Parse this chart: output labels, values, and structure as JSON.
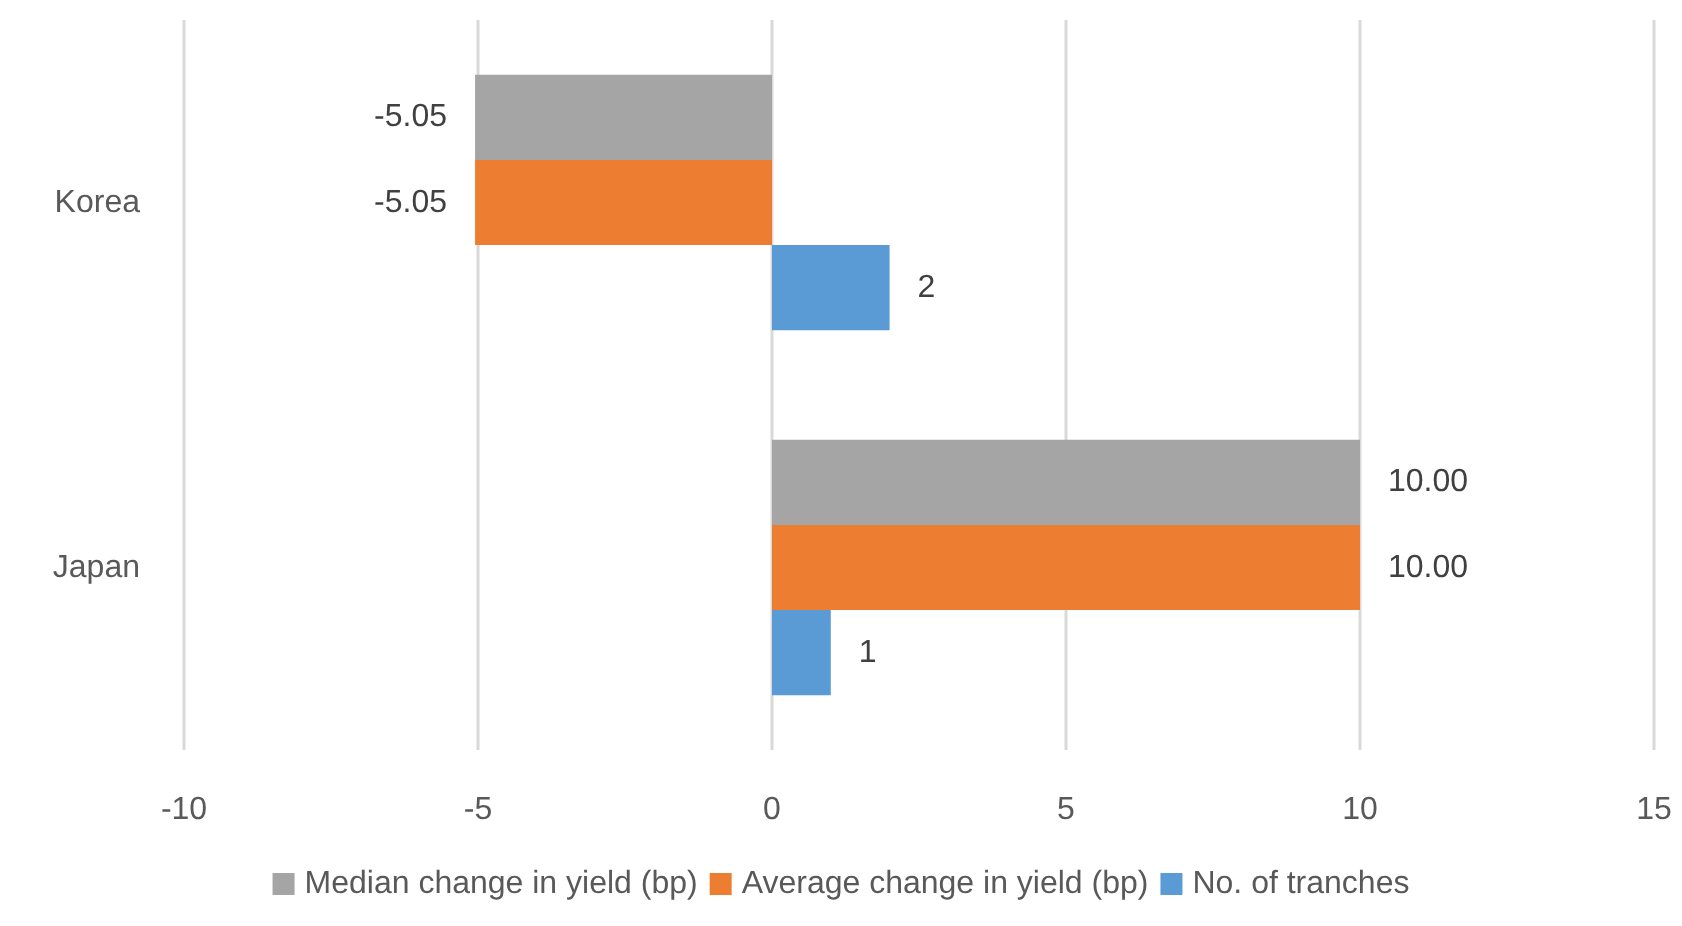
{
  "chart_data": {
    "type": "bar",
    "orientation": "horizontal",
    "categories": [
      "Korea",
      "Japan"
    ],
    "series": [
      {
        "name": "Median change in yield (bp)",
        "color": "#a5a5a5",
        "values": [
          -5.05,
          10.0
        ],
        "value_labels": [
          "-5.05",
          "10.00"
        ]
      },
      {
        "name": "Average change in yield (bp)",
        "color": "#ed7d31",
        "values": [
          -5.05,
          10.0
        ],
        "value_labels": [
          "-5.05",
          "10.00"
        ]
      },
      {
        "name": "No. of tranches",
        "color": "#5b9bd5",
        "values": [
          2,
          1
        ],
        "value_labels": [
          "2",
          "1"
        ]
      }
    ],
    "xlim": [
      -10,
      15
    ],
    "xticks": [
      -10,
      -5,
      0,
      5,
      10,
      15
    ],
    "grid": "x",
    "legend": "bottom"
  }
}
